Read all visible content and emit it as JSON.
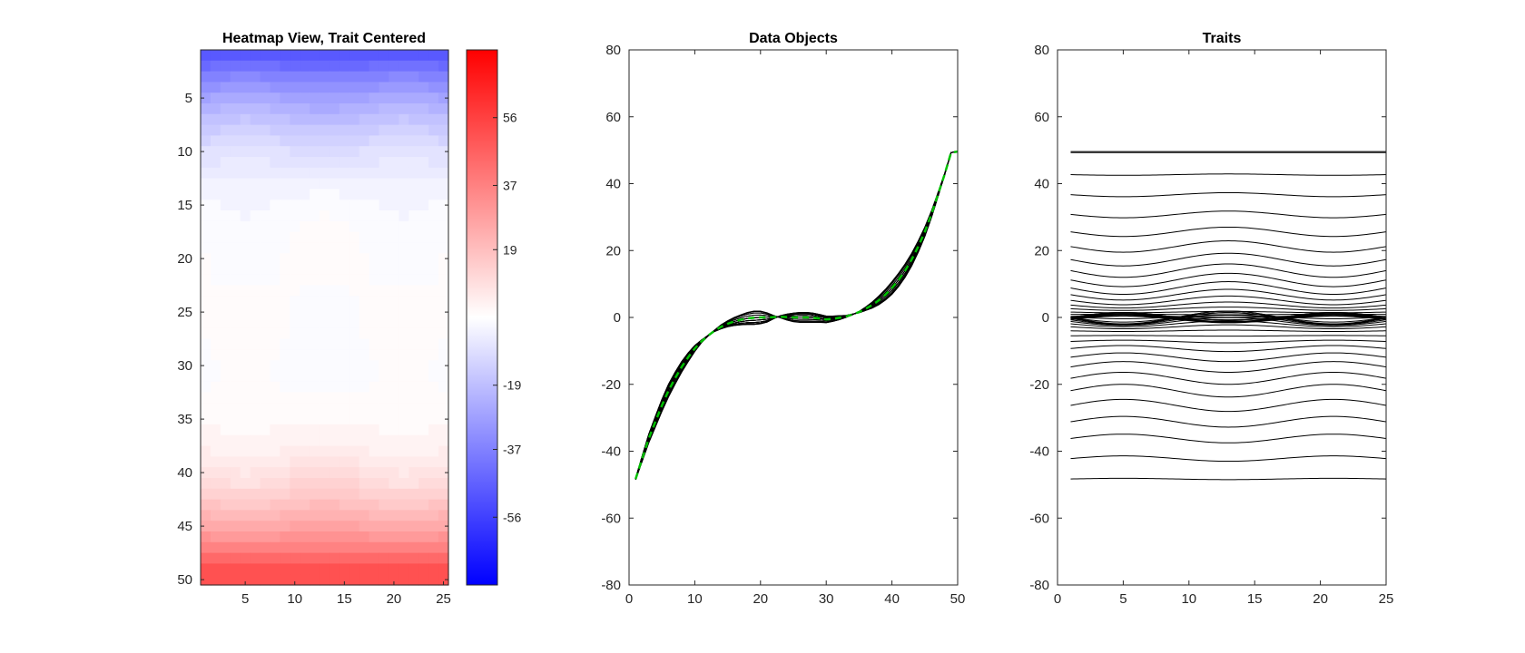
{
  "chart_data": [
    {
      "type": "heatmap",
      "title": "Heatmap View, Trait Centered",
      "rows": 50,
      "cols": 25,
      "xlim": [
        0.5,
        25.5
      ],
      "ylim": [
        0.5,
        50.5
      ],
      "y_reversed": true,
      "x_ticks": [
        5,
        10,
        15,
        20,
        25
      ],
      "y_ticks": [
        5,
        10,
        15,
        20,
        25,
        30,
        35,
        40,
        45,
        50
      ],
      "colormap": {
        "low": "#0000ff",
        "mid": "#ffffff",
        "high": "#ff0000",
        "levels": 64
      },
      "clim": [
        -75,
        75
      ],
      "colorbar_ticks": [
        -56,
        -37,
        -19,
        19,
        37,
        56
      ],
      "trait_offsets": [
        -48.3,
        -42.2,
        -36.2,
        -31.2,
        -26.3,
        -21.9,
        -18.2,
        -14.8,
        -11.9,
        -9.3,
        -7.2,
        -5.5,
        -4.0,
        -2.8,
        -1.9,
        -1.2,
        -0.7,
        -0.3,
        -0.1,
        0,
        0,
        0.1,
        0.2,
        0.1,
        0,
        0,
        0,
        -0.1,
        -0.3,
        -0.6,
        -0.4,
        -0.1,
        0.3,
        0.9,
        1.6,
        2.6,
        3.7,
        5.1,
        6.8,
        8.8,
        11.2,
        14.0,
        17.3,
        21.2,
        25.6,
        30.8,
        36.7,
        42.7,
        49.3,
        49.6
      ],
      "trait_amplitudes": [
        0.2,
        0.8,
        1.3,
        1.6,
        1.8,
        1.9,
        1.8,
        1.6,
        1.3,
        0.9,
        0.4,
        0.1,
        -0.2,
        -0.6,
        -0.9,
        -1.2,
        -1.5,
        -1.8,
        -2.0,
        -1.9,
        -1.4,
        -0.5,
        0.3,
        0.9,
        1.3,
        1.5,
        1.5,
        1.4,
        1.2,
        1.0,
        0.8,
        0.6,
        0.3,
        0.1,
        -0.2,
        -0.5,
        -0.9,
        -1.3,
        -1.6,
        -1.9,
        -2.0,
        -2.0,
        -1.9,
        -1.7,
        -1.4,
        -1.0,
        -0.6,
        -0.2,
        0.0,
        0.0
      ],
      "wave_period": 16
    },
    {
      "type": "line",
      "title": "Data Objects",
      "xlim": [
        0,
        50
      ],
      "ylim": [
        -80,
        80
      ],
      "x_ticks": [
        0,
        10,
        20,
        30,
        40,
        50
      ],
      "y_ticks": [
        -80,
        -60,
        -40,
        -20,
        0,
        20,
        40,
        60,
        80
      ],
      "x": [
        1,
        50
      ],
      "series_count": 25,
      "series_color": "#000000",
      "mean_series_color": "#00c000",
      "mean_series_style": "dashed"
    },
    {
      "type": "line",
      "title": "Traits",
      "xlim": [
        0,
        25
      ],
      "ylim": [
        -80,
        80
      ],
      "x_ticks": [
        0,
        5,
        10,
        15,
        20,
        25
      ],
      "y_ticks": [
        -80,
        -60,
        -40,
        -20,
        0,
        20,
        40,
        60,
        80
      ],
      "x": [
        1,
        25
      ],
      "series_count": 50,
      "series_color": "#000000"
    }
  ]
}
